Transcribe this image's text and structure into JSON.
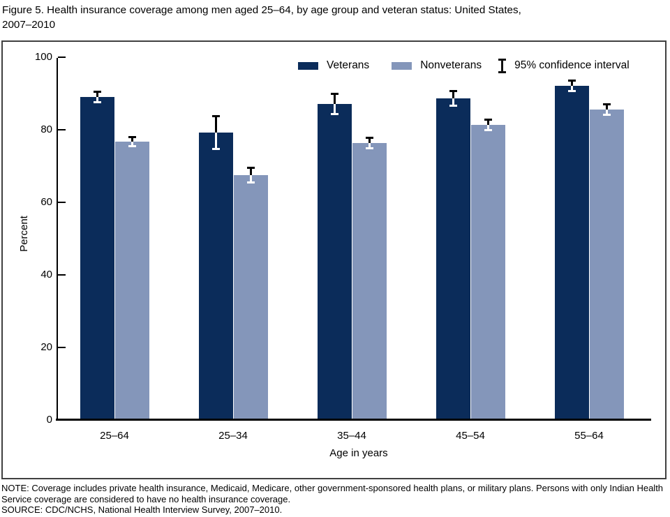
{
  "title": "Figure 5. Health insurance coverage among men aged 25–64, by age group and veteran status:  United States,\n2007–2010",
  "chart_data": {
    "type": "bar",
    "title": "Health insurance coverage among men aged 25–64, by age group and veteran status: United States, 2007–2010",
    "categories": [
      "25–64",
      "25–34",
      "35–44",
      "45–54",
      "55–64"
    ],
    "series": [
      {
        "name": "Veterans",
        "color": "#0b2c5a",
        "values": [
          89.2,
          79.5,
          87.3,
          88.8,
          92.3
        ],
        "ci_halfwidth": [
          1.3,
          4.4,
          2.6,
          2.0,
          1.4
        ]
      },
      {
        "name": "Nonveterans",
        "color": "#8496ba",
        "values": [
          76.9,
          67.7,
          76.5,
          81.6,
          85.7
        ],
        "ci_halfwidth": [
          1.1,
          1.9,
          1.4,
          1.3,
          1.3
        ]
      }
    ],
    "xlabel": "Age in years",
    "ylabel": "Percent",
    "ylim": [
      0,
      100
    ],
    "yticks": [
      0,
      20,
      40,
      60,
      80,
      100
    ],
    "grid": false,
    "legend_position": "top-right",
    "error_bars_label": "95% confidence interval",
    "error_bar_color_above_bar": "#000000",
    "error_bar_color_inside_bar": "#ffffff"
  },
  "footer": {
    "note": "NOTE: Coverage includes private health insurance, Medicaid, Medicare, other government-sponsored health plans, or military plans. Persons with only Indian Health Service coverage are considered to have no health insurance coverage.",
    "source": "SOURCE: CDC/NCHS, National Health Interview Survey, 2007–2010."
  }
}
